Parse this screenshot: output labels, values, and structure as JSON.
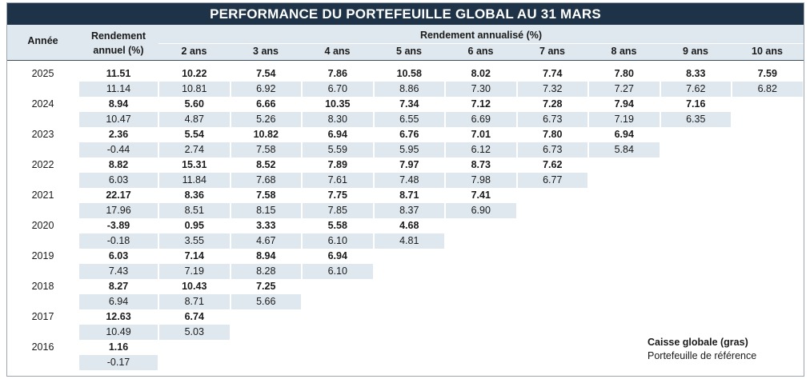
{
  "title": "PERFORMANCE DU PORTEFEUILLE GLOBAL AU 31 MARS",
  "header": {
    "year_label": "Année",
    "annual_line1": "Rendement",
    "annual_line2": "annuel (%)",
    "annualized_label": "Rendement  annualisé (%)",
    "horizons": [
      "2 ans",
      "3 ans",
      "4 ans",
      "5 ans",
      "6 ans",
      "7 ans",
      "8 ans",
      "9 ans",
      "10 ans"
    ]
  },
  "rows": [
    {
      "year": "2025",
      "fund": [
        "11.51",
        "10.22",
        "7.54",
        "7.86",
        "10.58",
        "8.02",
        "7.74",
        "7.80",
        "8.33",
        "7.59"
      ],
      "bench": [
        "11.14",
        "10.81",
        "6.92",
        "6.70",
        "8.86",
        "7.30",
        "7.32",
        "7.27",
        "7.62",
        "6.82"
      ]
    },
    {
      "year": "2024",
      "fund": [
        "8.94",
        "5.60",
        "6.66",
        "10.35",
        "7.34",
        "7.12",
        "7.28",
        "7.94",
        "7.16"
      ],
      "bench": [
        "10.47",
        "4.87",
        "5.26",
        "8.30",
        "6.55",
        "6.69",
        "6.73",
        "7.19",
        "6.35"
      ]
    },
    {
      "year": "2023",
      "fund": [
        "2.36",
        "5.54",
        "10.82",
        "6.94",
        "6.76",
        "7.01",
        "7.80",
        "6.94"
      ],
      "bench": [
        "-0.44",
        "2.74",
        "7.58",
        "5.59",
        "5.95",
        "6.12",
        "6.73",
        "5.84"
      ]
    },
    {
      "year": "2022",
      "fund": [
        "8.82",
        "15.31",
        "8.52",
        "7.89",
        "7.97",
        "8.73",
        "7.62"
      ],
      "bench": [
        "6.03",
        "11.84",
        "7.68",
        "7.61",
        "7.48",
        "7.98",
        "6.77"
      ]
    },
    {
      "year": "2021",
      "fund": [
        "22.17",
        "8.36",
        "7.58",
        "7.75",
        "8.71",
        "7.41"
      ],
      "bench": [
        "17.96",
        "8.51",
        "8.15",
        "7.85",
        "8.37",
        "6.90"
      ]
    },
    {
      "year": "2020",
      "fund": [
        "-3.89",
        "0.95",
        "3.33",
        "5.58",
        "4.68"
      ],
      "bench": [
        "-0.18",
        "3.55",
        "4.67",
        "6.10",
        "4.81"
      ]
    },
    {
      "year": "2019",
      "fund": [
        "6.03",
        "7.14",
        "8.94",
        "6.94"
      ],
      "bench": [
        "7.43",
        "7.19",
        "8.28",
        "6.10"
      ]
    },
    {
      "year": "2018",
      "fund": [
        "8.27",
        "10.43",
        "7.25"
      ],
      "bench": [
        "6.94",
        "8.71",
        "5.66"
      ]
    },
    {
      "year": "2017",
      "fund": [
        "12.63",
        "6.74"
      ],
      "bench": [
        "10.49",
        "5.03"
      ]
    },
    {
      "year": "2016",
      "fund": [
        "1.16"
      ],
      "bench": [
        "-0.17"
      ]
    }
  ],
  "legend": {
    "bold_label": "Caisse globale (gras)",
    "normal_label": "Portefeuille de référence"
  }
}
